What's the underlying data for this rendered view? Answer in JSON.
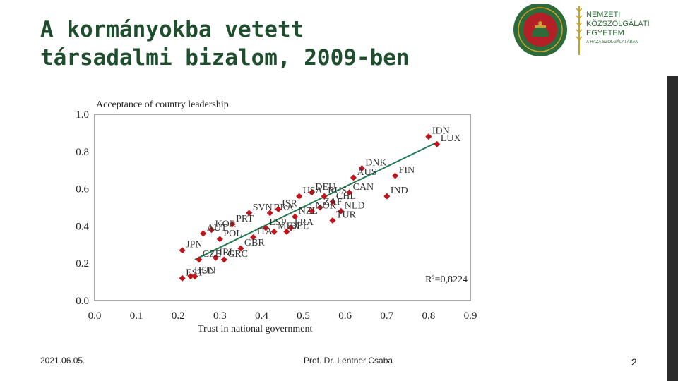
{
  "slide": {
    "title_lines": [
      "A kormányokba vetett",
      "társadalmi bizalom, 2009-ben"
    ],
    "footer_date": "2021.06.05.",
    "footer_author": "Prof. Dr. Lentner Csaba",
    "page_number": "2"
  },
  "logo": {
    "lines": [
      "NEMZETI",
      "KÖZSZOLGÁLATI",
      "EGYETEM",
      "A HAZA SZOLGÁLATÁBAN"
    ],
    "colors": {
      "green": "#2e6b3a",
      "red": "#b32025",
      "gold": "#c9a227"
    }
  },
  "colors": {
    "title": "#1f4e2e",
    "point": "#c0141c",
    "trend": "#1f7a4f",
    "sidebar": "#2b2b2b"
  },
  "chart_data": {
    "type": "scatter",
    "ylabel": "Acceptance of country leadership",
    "xlabel": "Trust in national government",
    "annotation": "R²=0,8224",
    "xlim": [
      0,
      0.9
    ],
    "ylim": [
      0,
      1.0
    ],
    "x_ticks": [
      "0.0",
      "0.1",
      "0.2",
      "0.3",
      "0.4",
      "0.5",
      "0.6",
      "0.7",
      "0.8",
      "0.9"
    ],
    "y_ticks": [
      "0.0",
      "0.2",
      "0.4",
      "0.6",
      "0.8",
      "1.0"
    ],
    "trendline": [
      [
        0.24,
        0.22
      ],
      [
        0.82,
        0.85
      ]
    ],
    "points": [
      {
        "label": "IDN",
        "x": 0.8,
        "y": 0.88
      },
      {
        "label": "LUX",
        "x": 0.82,
        "y": 0.84
      },
      {
        "label": "DNK",
        "x": 0.64,
        "y": 0.71
      },
      {
        "label": "AUS",
        "x": 0.62,
        "y": 0.66
      },
      {
        "label": "FIN",
        "x": 0.72,
        "y": 0.67
      },
      {
        "label": "IND",
        "x": 0.7,
        "y": 0.56
      },
      {
        "label": "CAN",
        "x": 0.61,
        "y": 0.58
      },
      {
        "label": "DEU",
        "x": 0.52,
        "y": 0.58
      },
      {
        "label": "RUS",
        "x": 0.55,
        "y": 0.56
      },
      {
        "label": "CHL",
        "x": 0.57,
        "y": 0.53
      },
      {
        "label": "USA",
        "x": 0.49,
        "y": 0.56
      },
      {
        "label": "ZAF",
        "x": 0.54,
        "y": 0.5
      },
      {
        "label": "NOR",
        "x": 0.52,
        "y": 0.48
      },
      {
        "label": "NLD",
        "x": 0.59,
        "y": 0.48
      },
      {
        "label": "TUR",
        "x": 0.57,
        "y": 0.43
      },
      {
        "label": "SVN",
        "x": 0.37,
        "y": 0.47
      },
      {
        "label": "BRA",
        "x": 0.42,
        "y": 0.47
      },
      {
        "label": "ISR",
        "x": 0.44,
        "y": 0.49
      },
      {
        "label": "NZL",
        "x": 0.48,
        "y": 0.45
      },
      {
        "label": "PRT",
        "x": 0.33,
        "y": 0.41
      },
      {
        "label": "ESP",
        "x": 0.41,
        "y": 0.39
      },
      {
        "label": "FRA",
        "x": 0.47,
        "y": 0.39
      },
      {
        "label": "KOR",
        "x": 0.28,
        "y": 0.38
      },
      {
        "label": "AUT",
        "x": 0.26,
        "y": 0.36
      },
      {
        "label": "POL",
        "x": 0.3,
        "y": 0.33
      },
      {
        "label": "ITA",
        "x": 0.38,
        "y": 0.34
      },
      {
        "label": "MEX",
        "x": 0.43,
        "y": 0.37
      },
      {
        "label": "BEL",
        "x": 0.46,
        "y": 0.37
      },
      {
        "label": "JPN",
        "x": 0.21,
        "y": 0.27
      },
      {
        "label": "IRL",
        "x": 0.29,
        "y": 0.23
      },
      {
        "label": "GBR",
        "x": 0.35,
        "y": 0.28
      },
      {
        "label": "CZE",
        "x": 0.25,
        "y": 0.22
      },
      {
        "label": "GRC",
        "x": 0.31,
        "y": 0.22
      },
      {
        "label": "EST",
        "x": 0.21,
        "y": 0.12
      },
      {
        "label": "ISL",
        "x": 0.24,
        "y": 0.13
      },
      {
        "label": "HUN",
        "x": 0.23,
        "y": 0.13
      }
    ]
  }
}
